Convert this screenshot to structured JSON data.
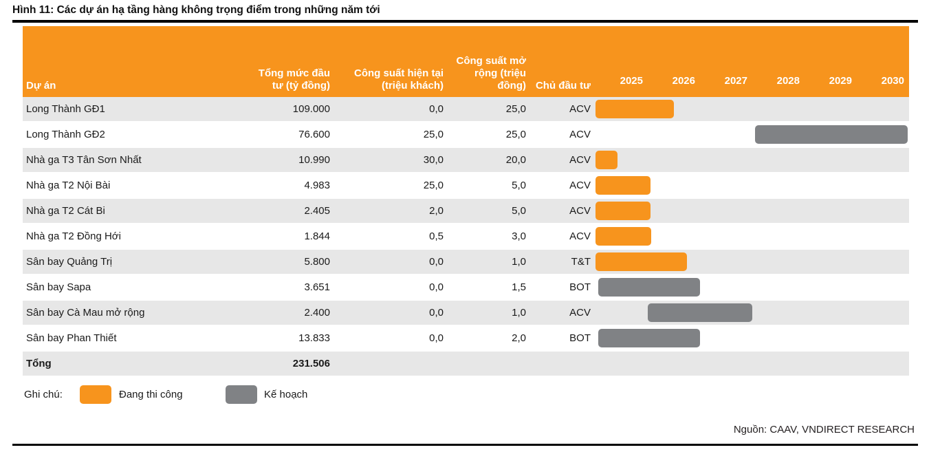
{
  "title": "Hình 11: Các dự án hạ tầng hàng không trọng điểm trong những năm tới",
  "source": "Nguồn: CAAV, VNDIRECT RESEARCH",
  "colors": {
    "header_bg": "#F7941D",
    "construction": "#F7941D",
    "plan": "#808285",
    "row_stripe": "#E7E7E7",
    "rule": "#000000"
  },
  "legend": {
    "label": "Ghi chú:",
    "items": [
      {
        "label": "Đang thi công",
        "type": "construction"
      },
      {
        "label": "Kế hoạch",
        "type": "plan"
      }
    ]
  },
  "chart_data": {
    "type": "table",
    "title": "Hình 11: Các dự án hạ tầng hàng không trọng điểm trong những năm tới",
    "columns": [
      "Dự án",
      "Tổng mức đầu tư (tỷ đồng)",
      "Công suất hiện tại (triệu khách)",
      "Công suất mở rộng (triệu đồng)",
      "Chủ đầu tư"
    ],
    "years": [
      "2025",
      "2026",
      "2027",
      "2028",
      "2029",
      "2030"
    ],
    "gantt_range": [
      2025,
      2031
    ],
    "rows": [
      {
        "project": "Long Thành GĐ1",
        "investment": "109.000",
        "capacity_current": "0,0",
        "capacity_expansion": "25,0",
        "investor": "ACV",
        "bar": {
          "start_year": 2025.0,
          "end_year": 2026.5,
          "type": "construction",
          "status": "Đang thi công"
        }
      },
      {
        "project": "Long Thành GĐ2",
        "investment": "76.600",
        "capacity_current": "25,0",
        "capacity_expansion": "25,0",
        "investor": "ACV",
        "bar": {
          "start_year": 2028.05,
          "end_year": 2030.97,
          "type": "plan",
          "status": "Kế hoạch"
        }
      },
      {
        "project": "Nhà ga T3 Tân Sơn Nhất",
        "investment": "10.990",
        "capacity_current": "30,0",
        "capacity_expansion": "20,0",
        "investor": "ACV",
        "bar": {
          "start_year": 2025.0,
          "end_year": 2025.42,
          "type": "construction",
          "status": "Đang thi công"
        }
      },
      {
        "project": "Nhà ga T2 Nội Bài",
        "investment": "4.983",
        "capacity_current": "25,0",
        "capacity_expansion": "5,0",
        "investor": "ACV",
        "bar": {
          "start_year": 2025.0,
          "end_year": 2026.05,
          "type": "construction",
          "status": "Đang thi công"
        }
      },
      {
        "project": "Nhà ga T2 Cát Bi",
        "investment": "2.405",
        "capacity_current": "2,0",
        "capacity_expansion": "5,0",
        "investor": "ACV",
        "bar": {
          "start_year": 2025.0,
          "end_year": 2026.05,
          "type": "construction",
          "status": "Đang thi công"
        }
      },
      {
        "project": "Nhà ga T2 Đồng Hới",
        "investment": "1.844",
        "capacity_current": "0,5",
        "capacity_expansion": "3,0",
        "investor": "ACV",
        "bar": {
          "start_year": 2025.0,
          "end_year": 2026.07,
          "type": "construction",
          "status": "Đang thi công"
        }
      },
      {
        "project": "Sân bay Quảng Trị",
        "investment": "5.800",
        "capacity_current": "0,0",
        "capacity_expansion": "1,0",
        "investor": "T&T",
        "bar": {
          "start_year": 2025.0,
          "end_year": 2026.75,
          "type": "construction",
          "status": "Đang thi công"
        }
      },
      {
        "project": "Sân bay Sapa",
        "investment": "3.651",
        "capacity_current": "0,0",
        "capacity_expansion": "1,5",
        "investor": "BOT",
        "bar": {
          "start_year": 2025.05,
          "end_year": 2027.0,
          "type": "plan",
          "status": "Kế hoạch"
        }
      },
      {
        "project": "Sân bay Cà Mau mở rộng",
        "investment": "2.400",
        "capacity_current": "0,0",
        "capacity_expansion": "1,0",
        "investor": "ACV",
        "bar": {
          "start_year": 2026.0,
          "end_year": 2028.0,
          "type": "plan",
          "status": "Kế hoạch"
        }
      },
      {
        "project": "Sân bay Phan Thiết",
        "investment": "13.833",
        "capacity_current": "0,0",
        "capacity_expansion": "2,0",
        "investor": "BOT",
        "bar": {
          "start_year": 2025.05,
          "end_year": 2027.0,
          "type": "plan",
          "status": "Kế hoạch"
        }
      }
    ],
    "total": {
      "label": "Tổng",
      "investment": "231.506"
    }
  }
}
